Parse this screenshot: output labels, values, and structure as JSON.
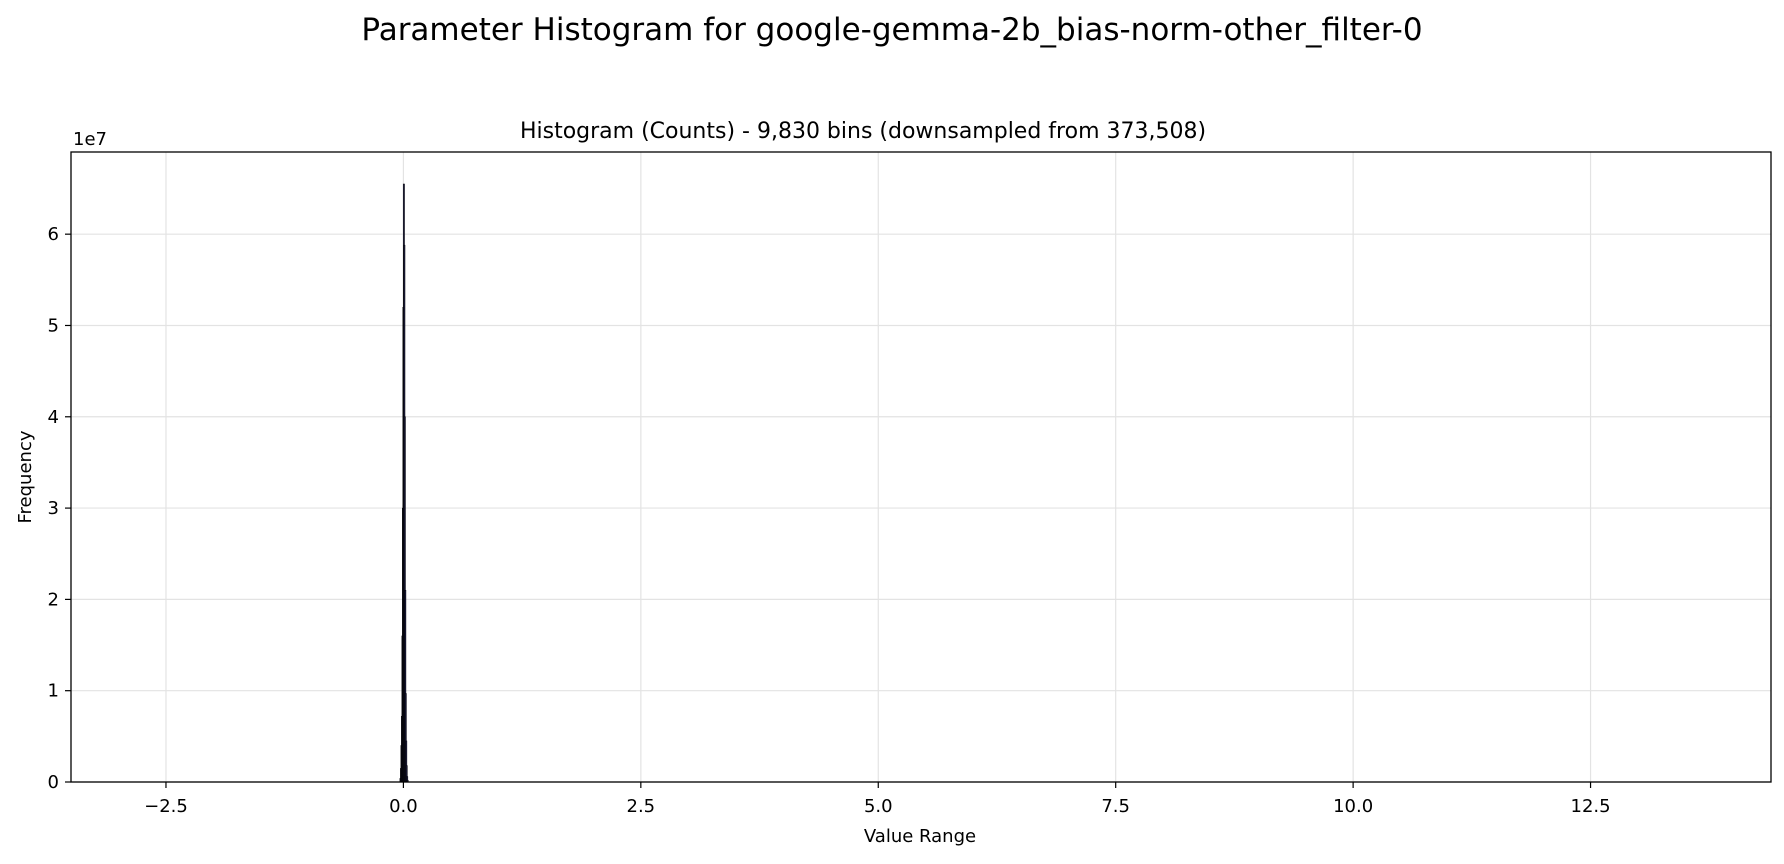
{
  "chart_data": {
    "type": "bar",
    "suptitle": "Parameter Histogram for google-gemma-2b_bias-norm-other_filter-0",
    "title": "Histogram (Counts) - 9,830 bins (downsampled from 373,508)",
    "xlabel": "Value Range",
    "ylabel": "Frequency",
    "y_offset_label": "1e7",
    "xlim": [
      -3.5,
      14.4
    ],
    "ylim": [
      0,
      69000000.0
    ],
    "xticks": [
      -2.5,
      0.0,
      2.5,
      5.0,
      7.5,
      10.0,
      12.5
    ],
    "xtick_labels": [
      "−2.5",
      "0.0",
      "2.5",
      "5.0",
      "7.5",
      "10.0",
      "12.5"
    ],
    "yticks": [
      0,
      10000000.0,
      20000000.0,
      30000000.0,
      40000000.0,
      50000000.0,
      60000000.0
    ],
    "ytick_labels": [
      "0",
      "1",
      "2",
      "3",
      "4",
      "5",
      "6"
    ],
    "grid": true,
    "bar_color": "#1a1a3a",
    "bins": [
      {
        "x": -0.035,
        "count": 400000
      },
      {
        "x": -0.03,
        "count": 1500000
      },
      {
        "x": -0.025,
        "count": 4000000
      },
      {
        "x": -0.02,
        "count": 7200000
      },
      {
        "x": -0.015,
        "count": 16000000
      },
      {
        "x": -0.01,
        "count": 30000000
      },
      {
        "x": -0.005,
        "count": 52000000
      },
      {
        "x": 0.0,
        "count": 65500000
      },
      {
        "x": 0.005,
        "count": 58800000
      },
      {
        "x": 0.01,
        "count": 40000000
      },
      {
        "x": 0.015,
        "count": 21000000
      },
      {
        "x": 0.02,
        "count": 9700000
      },
      {
        "x": 0.025,
        "count": 4500000
      },
      {
        "x": 0.03,
        "count": 1800000
      },
      {
        "x": 0.035,
        "count": 600000
      },
      {
        "x": 0.04,
        "count": 200000
      }
    ]
  }
}
